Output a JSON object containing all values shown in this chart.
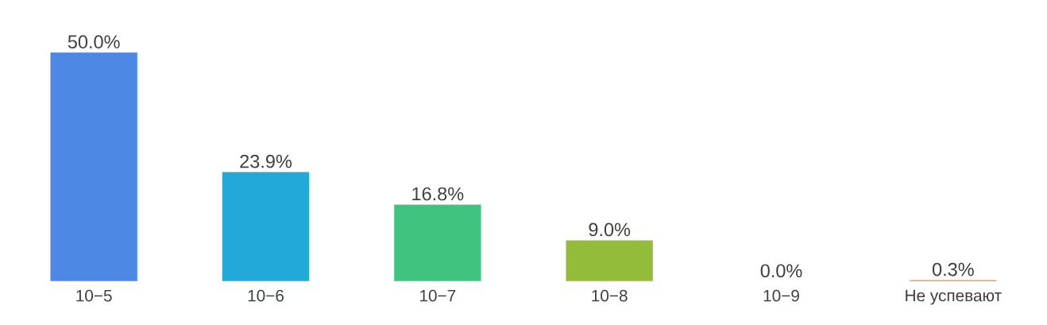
{
  "chart_data": {
    "type": "bar",
    "categories": [
      "10−5",
      "10−6",
      "10−7",
      "10−8",
      "10−9",
      "Не успевают"
    ],
    "values": [
      50.0,
      23.9,
      16.8,
      9.0,
      0.0,
      0.3
    ],
    "colors": [
      "#4e88e5",
      "#21aad9",
      "#3ec47f",
      "#93bc3a",
      "#dfcb17",
      "#df8430"
    ],
    "value_labels": [
      "50.0%",
      "23.9%",
      "16.8%",
      "9.0%",
      "0.0%",
      "0.3%"
    ]
  }
}
